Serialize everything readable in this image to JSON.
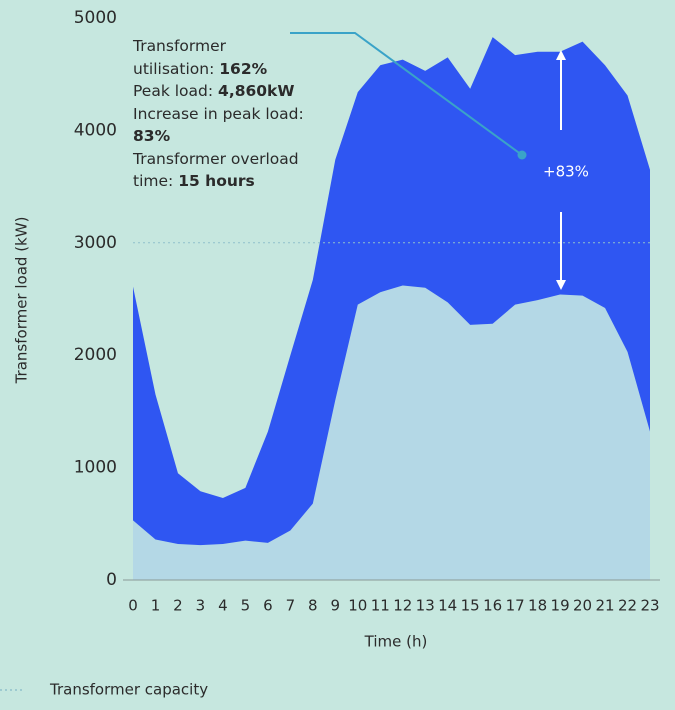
{
  "chart_data": {
    "type": "stacked-area",
    "x": [
      0,
      1,
      2,
      3,
      4,
      5,
      6,
      7,
      8,
      9,
      10,
      11,
      12,
      13,
      14,
      15,
      16,
      17,
      18,
      19,
      20,
      21,
      22,
      23
    ],
    "xlim": [
      0,
      23
    ],
    "series": [
      {
        "color": "#b4d8e6",
        "values": [
          530,
          360,
          320,
          310,
          320,
          350,
          330,
          440,
          680,
          1600,
          2450,
          2560,
          2620,
          2600,
          2470,
          2270,
          2280,
          2450,
          2490,
          2540,
          2530,
          2420,
          2030,
          1320
        ]
      },
      {
        "color": "#2f56f2",
        "values": [
          2080,
          1290,
          630,
          480,
          410,
          470,
          990,
          1560,
          1990,
          2140,
          1890,
          2020,
          2010,
          1930,
          2180,
          2100,
          2550,
          2220,
          2210,
          2160,
          2260,
          2160,
          2280,
          2330
        ]
      }
    ],
    "ylim": [
      0,
      5000
    ],
    "yticks": [
      0,
      1000,
      2000,
      3000,
      4000,
      5000
    ],
    "xlabel": "Time (h)",
    "ylabel": "Transformer load (kW)",
    "capacity": {
      "name": "Transformer capacity",
      "value": 3000
    },
    "annotation": [
      {
        "label": "Transformer utilisation:",
        "value": "162%"
      },
      {
        "label": "Peak load:",
        "value": "4,860kW"
      },
      {
        "label": "Increase in peak load:",
        "value": "83%"
      },
      {
        "label": "Transformer overload time:",
        "value": "15 hours"
      }
    ],
    "increase_label": "+83%"
  }
}
